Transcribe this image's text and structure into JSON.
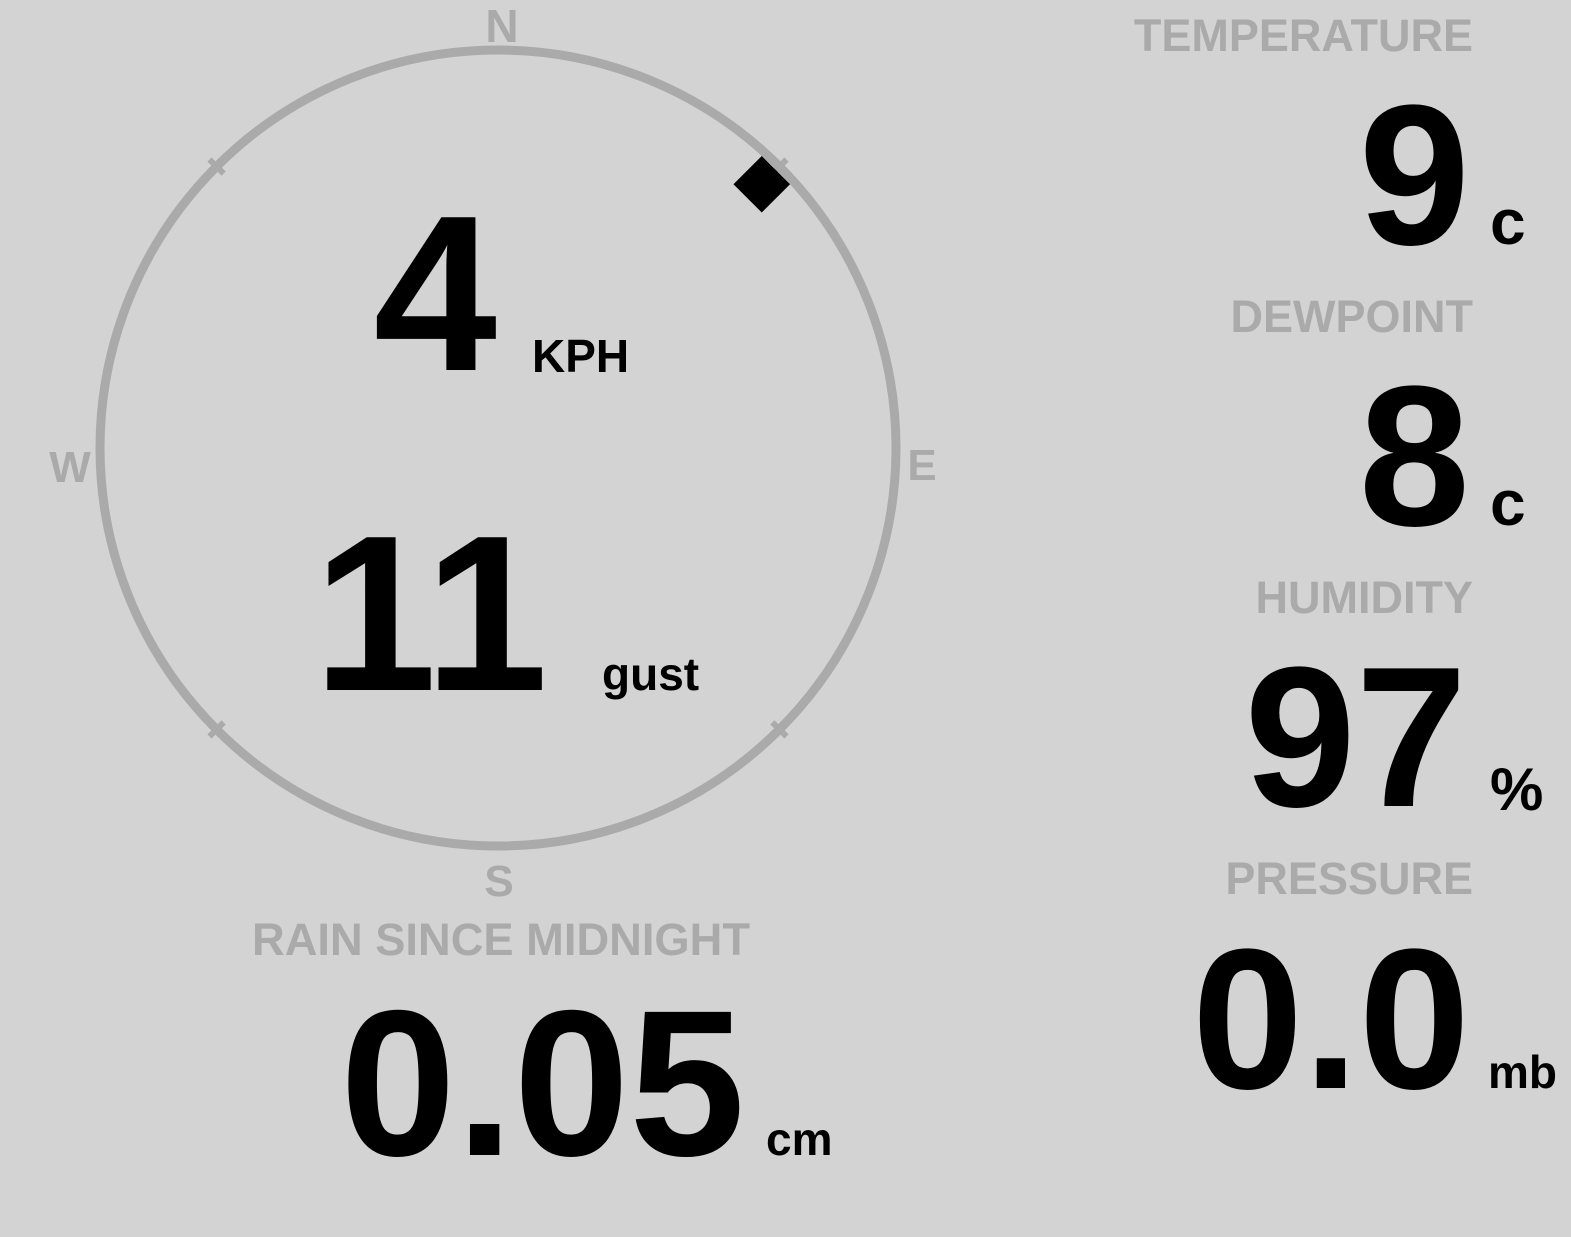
{
  "colors": {
    "background": "#d3d3d3",
    "label": "#aaaaaa",
    "value": "#000000",
    "indicator": "#000000"
  },
  "compass": {
    "north": "N",
    "east": "E",
    "south": "S",
    "west": "W",
    "wind_direction_degrees": 45,
    "indicator_icon": "diamond-icon"
  },
  "wind": {
    "speed": "4",
    "speed_unit": "KPH",
    "gust": "11",
    "gust_label": "gust"
  },
  "rain": {
    "label": "RAIN SINCE MIDNIGHT",
    "value": "0.05",
    "unit": "cm"
  },
  "temperature": {
    "label": "TEMPERATURE",
    "value": "9",
    "unit": "c"
  },
  "dewpoint": {
    "label": "DEWPOINT",
    "value": "8",
    "unit": "c"
  },
  "humidity": {
    "label": "HUMIDITY",
    "value": "97",
    "unit": "%"
  },
  "pressure": {
    "label": "PRESSURE",
    "value": "0.0",
    "unit": "mb"
  }
}
